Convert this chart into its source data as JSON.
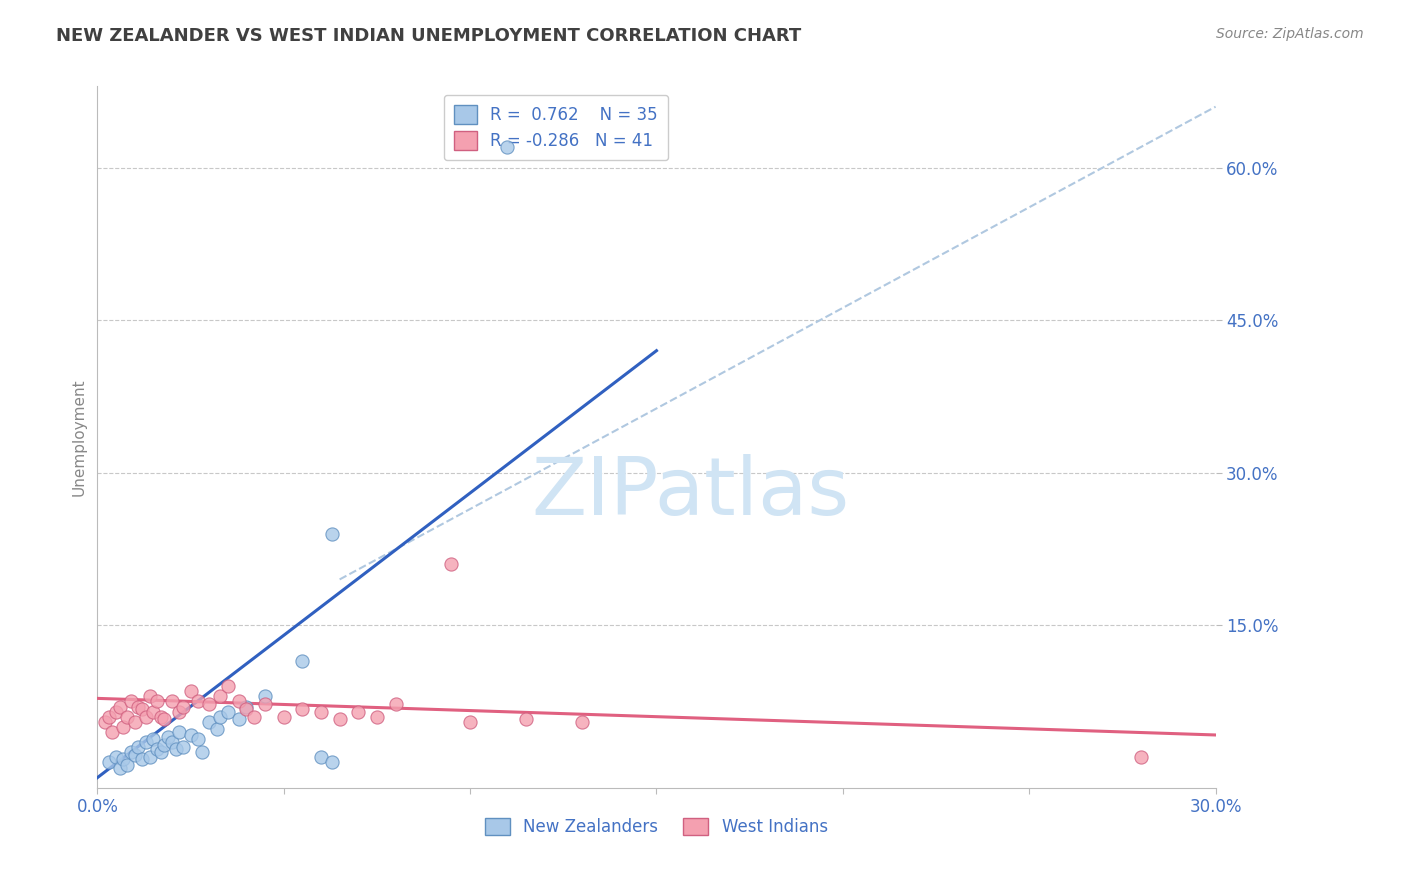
{
  "title": "NEW ZEALANDER VS WEST INDIAN UNEMPLOYMENT CORRELATION CHART",
  "source": "Source: ZipAtlas.com",
  "ylabel": "Unemployment",
  "xlim": [
    0.0,
    0.3
  ],
  "ylim": [
    -0.01,
    0.68
  ],
  "xticks": [
    0.0,
    0.05,
    0.1,
    0.15,
    0.2,
    0.25,
    0.3
  ],
  "xtick_labels": [
    "0.0%",
    "",
    "",
    "",
    "",
    "",
    "30.0%"
  ],
  "ytick_positions": [
    0.15,
    0.3,
    0.45,
    0.6
  ],
  "ytick_labels": [
    "15.0%",
    "30.0%",
    "45.0%",
    "60.0%"
  ],
  "blue_R": 0.762,
  "blue_N": 35,
  "pink_R": -0.286,
  "pink_N": 41,
  "blue_color": "#a8c8e8",
  "pink_color": "#f4a0b0",
  "blue_edge_color": "#6090c0",
  "pink_edge_color": "#d06080",
  "blue_line_color": "#3060c0",
  "pink_line_color": "#e06080",
  "ref_line_color": "#b0c8e0",
  "watermark": "ZIPatlas",
  "watermark_color": "#d0e4f4",
  "background_color": "#ffffff",
  "grid_color": "#c8c8c8",
  "title_color": "#404040",
  "axis_label_color": "#4472c4",
  "blue_scatter_x": [
    0.003,
    0.005,
    0.006,
    0.007,
    0.008,
    0.009,
    0.01,
    0.011,
    0.012,
    0.013,
    0.014,
    0.015,
    0.016,
    0.017,
    0.018,
    0.019,
    0.02,
    0.021,
    0.022,
    0.023,
    0.025,
    0.027,
    0.028,
    0.03,
    0.032,
    0.033,
    0.035,
    0.038,
    0.04,
    0.045,
    0.055,
    0.06,
    0.063,
    0.11,
    0.063
  ],
  "blue_scatter_y": [
    0.015,
    0.02,
    0.01,
    0.018,
    0.012,
    0.025,
    0.022,
    0.03,
    0.018,
    0.035,
    0.02,
    0.038,
    0.028,
    0.025,
    0.032,
    0.04,
    0.035,
    0.028,
    0.045,
    0.03,
    0.042,
    0.038,
    0.025,
    0.055,
    0.048,
    0.06,
    0.065,
    0.058,
    0.07,
    0.08,
    0.115,
    0.02,
    0.015,
    0.62,
    0.24
  ],
  "pink_scatter_x": [
    0.002,
    0.003,
    0.004,
    0.005,
    0.006,
    0.007,
    0.008,
    0.009,
    0.01,
    0.011,
    0.012,
    0.013,
    0.014,
    0.015,
    0.016,
    0.017,
    0.018,
    0.02,
    0.022,
    0.023,
    0.025,
    0.027,
    0.03,
    0.033,
    0.035,
    0.038,
    0.04,
    0.042,
    0.045,
    0.05,
    0.055,
    0.06,
    0.065,
    0.07,
    0.075,
    0.08,
    0.095,
    0.1,
    0.115,
    0.13,
    0.28
  ],
  "pink_scatter_y": [
    0.055,
    0.06,
    0.045,
    0.065,
    0.07,
    0.05,
    0.06,
    0.075,
    0.055,
    0.07,
    0.068,
    0.06,
    0.08,
    0.065,
    0.075,
    0.06,
    0.058,
    0.075,
    0.065,
    0.07,
    0.085,
    0.075,
    0.072,
    0.08,
    0.09,
    0.075,
    0.068,
    0.06,
    0.072,
    0.06,
    0.068,
    0.065,
    0.058,
    0.065,
    0.06,
    0.072,
    0.21,
    0.055,
    0.058,
    0.055,
    0.02
  ],
  "blue_trendline_x": [
    0.0,
    0.15
  ],
  "blue_trendline_y": [
    0.0,
    0.42
  ],
  "pink_trendline_x": [
    0.0,
    0.3
  ],
  "pink_trendline_y": [
    0.078,
    0.042
  ],
  "ref_line_x": [
    0.065,
    0.3
  ],
  "ref_line_y": [
    0.195,
    0.66
  ],
  "legend_labels": [
    "New Zealanders",
    "West Indians"
  ],
  "figsize": [
    14.06,
    8.92
  ],
  "dpi": 100
}
